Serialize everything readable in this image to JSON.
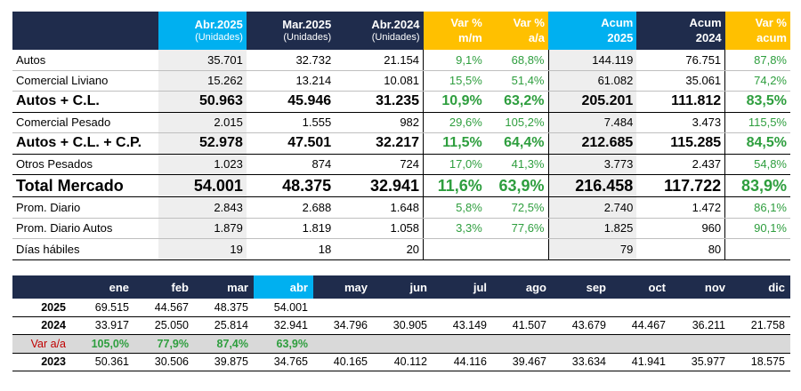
{
  "main_table": {
    "headers": [
      {
        "line1": "",
        "line2": ""
      },
      {
        "line1": "Abr.2025",
        "line2": "(Unidades)"
      },
      {
        "line1": "Mar.2025",
        "line2": "(Unidades)"
      },
      {
        "line1": "Abr.2024",
        "line2": "(Unidades)"
      },
      {
        "line1": "Var %",
        "line2": "m/m"
      },
      {
        "line1": "Var %",
        "line2": "a/a"
      },
      {
        "line1": "Acum",
        "line2": "2025"
      },
      {
        "line1": "Acum",
        "line2": "2024"
      },
      {
        "line1": "Var %",
        "line2": "acum"
      }
    ],
    "rows": [
      {
        "label": "Autos",
        "abr25": "35.701",
        "mar25": "32.732",
        "abr24": "21.154",
        "mm": "9,1%",
        "aa": "68,8%",
        "acum25": "144.119",
        "acum24": "76.751",
        "varacum": "87,8%"
      },
      {
        "label": "Comercial Liviano",
        "abr25": "15.262",
        "mar25": "13.214",
        "abr24": "10.081",
        "mm": "15,5%",
        "aa": "51,4%",
        "acum25": "61.082",
        "acum24": "35.061",
        "varacum": "74,2%"
      },
      {
        "label": "Autos + C.L.",
        "abr25": "50.963",
        "mar25": "45.946",
        "abr24": "31.235",
        "mm": "10,9%",
        "aa": "63,2%",
        "acum25": "205.201",
        "acum24": "111.812",
        "varacum": "83,5%"
      },
      {
        "label": "Comercial Pesado",
        "abr25": "2.015",
        "mar25": "1.555",
        "abr24": "982",
        "mm": "29,6%",
        "aa": "105,2%",
        "acum25": "7.484",
        "acum24": "3.473",
        "varacum": "115,5%"
      },
      {
        "label": "Autos + C.L. + C.P.",
        "abr25": "52.978",
        "mar25": "47.501",
        "abr24": "32.217",
        "mm": "11,5%",
        "aa": "64,4%",
        "acum25": "212.685",
        "acum24": "115.285",
        "varacum": "84,5%"
      },
      {
        "label": "Otros Pesados",
        "abr25": "1.023",
        "mar25": "874",
        "abr24": "724",
        "mm": "17,0%",
        "aa": "41,3%",
        "acum25": "3.773",
        "acum24": "2.437",
        "varacum": "54,8%"
      },
      {
        "label": "Total Mercado",
        "abr25": "54.001",
        "mar25": "48.375",
        "abr24": "32.941",
        "mm": "11,6%",
        "aa": "63,9%",
        "acum25": "216.458",
        "acum24": "117.722",
        "varacum": "83,9%"
      },
      {
        "label": "Prom. Diario",
        "abr25": "2.843",
        "mar25": "2.688",
        "abr24": "1.648",
        "mm": "5,8%",
        "aa": "72,5%",
        "acum25": "2.740",
        "acum24": "1.472",
        "varacum": "86,1%"
      },
      {
        "label": "Prom. Diario Autos",
        "abr25": "1.879",
        "mar25": "1.819",
        "abr24": "1.058",
        "mm": "3,3%",
        "aa": "77,6%",
        "acum25": "1.825",
        "acum24": "960",
        "varacum": "90,1%"
      },
      {
        "label": "Días hábiles",
        "abr25": "19",
        "mar25": "18",
        "abr24": "20",
        "mm": "",
        "aa": "",
        "acum25": "79",
        "acum24": "80",
        "varacum": ""
      }
    ]
  },
  "month_table": {
    "months": [
      "ene",
      "feb",
      "mar",
      "abr",
      "may",
      "jun",
      "jul",
      "ago",
      "sep",
      "oct",
      "nov",
      "dic"
    ],
    "rows": [
      {
        "year": "2025",
        "values": [
          "69.515",
          "44.567",
          "48.375",
          "54.001",
          "",
          "",
          "",
          "",
          "",
          "",
          "",
          ""
        ]
      },
      {
        "year": "2024",
        "values": [
          "33.917",
          "25.050",
          "25.814",
          "32.941",
          "34.796",
          "30.905",
          "43.149",
          "41.507",
          "43.679",
          "44.467",
          "36.211",
          "21.758"
        ]
      },
      {
        "year": "Var a/a",
        "values": [
          "105,0%",
          "77,9%",
          "87,4%",
          "63,9%",
          "",
          "",
          "",
          "",
          "",
          "",
          "",
          ""
        ]
      },
      {
        "year": "2023",
        "values": [
          "50.361",
          "30.506",
          "39.875",
          "34.765",
          "40.165",
          "40.112",
          "44.116",
          "39.467",
          "33.634",
          "41.941",
          "35.977",
          "18.575"
        ]
      }
    ]
  },
  "colors": {
    "navy": "#1f2c4c",
    "blue": "#00b0f0",
    "gold": "#ffc000",
    "green": "#2e9e3e",
    "red": "#c00000"
  }
}
